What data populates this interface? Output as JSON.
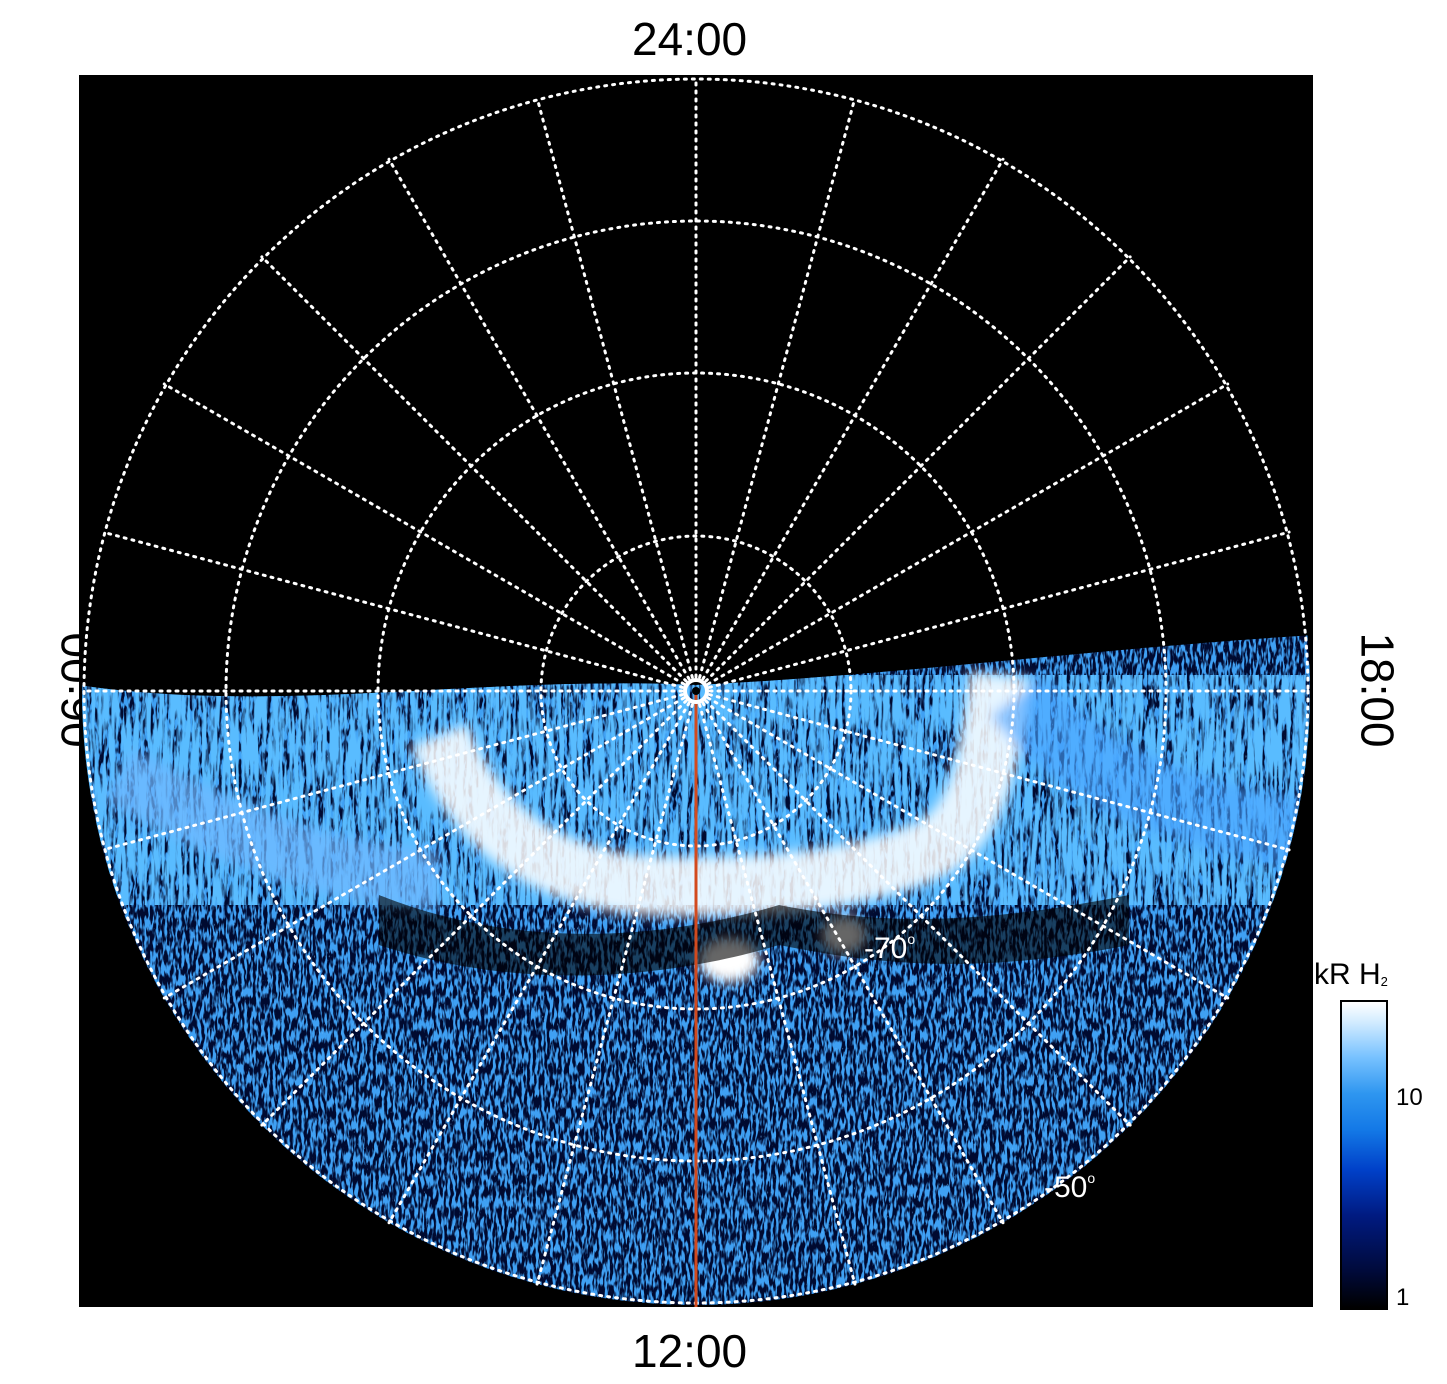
{
  "local_time_labels": {
    "top": "24:00",
    "bottom": "12:00",
    "left": "06:00",
    "right": "18:00"
  },
  "latitude_labels": [
    {
      "text": "-70",
      "deg": "o"
    },
    {
      "text": "-50",
      "deg": "o"
    }
  ],
  "colorbar": {
    "title": "kR H",
    "title_sub": "2",
    "ticks": [
      "10",
      "1"
    ]
  },
  "colors": {
    "background": "#000000",
    "grid": "#ffffff",
    "meridian_line": "#d24a1e",
    "emission_bright": "#ffffff",
    "emission_mid": "#2e96f0",
    "emission_dark": "#001a80"
  }
}
